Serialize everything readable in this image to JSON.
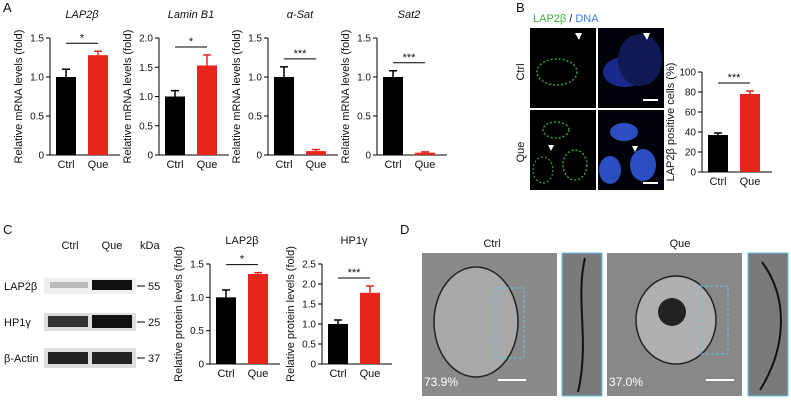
{
  "panel_labels": [
    "A",
    "B",
    "C",
    "D"
  ],
  "microscopy": {
    "channels": [
      "LAP2β",
      "/",
      "DNA"
    ],
    "rows": [
      "Ctrl",
      "Que"
    ]
  },
  "blot": {
    "columns": [
      "Ctrl",
      "Que"
    ],
    "unit": "kDa",
    "rows": [
      {
        "protein": "LAP2β",
        "kda": 55
      },
      {
        "protein": "HP1γ",
        "kda": 25
      },
      {
        "protein": "β-Actin",
        "kda": 37
      }
    ]
  },
  "em": {
    "groups": [
      {
        "label": "Ctrl",
        "percent": "73.9%"
      },
      {
        "label": "Que",
        "percent": "37.0%"
      }
    ]
  },
  "chart_data": [
    {
      "type": "bar",
      "title": "LAP2β",
      "italic_title": true,
      "ylabel": "Relative mRNA levels (fold)",
      "categories": [
        "Ctrl",
        "Que"
      ],
      "values": [
        1.0,
        1.28
      ],
      "errors": [
        0.1,
        0.05
      ],
      "colors": [
        "#000000",
        "#e8251b"
      ],
      "significance": "*",
      "ylim": [
        0,
        1.5
      ],
      "yticks": [
        0,
        0.5,
        {
          "value": 1,
          "label": "1.0"
        },
        1.5
      ]
    },
    {
      "type": "bar",
      "title": "Lamin B1",
      "italic_title": true,
      "ylabel": "Relative mRNA levels (fold)",
      "categories": [
        "Ctrl",
        "Que"
      ],
      "values": [
        1.0,
        1.53
      ],
      "errors": [
        0.1,
        0.18
      ],
      "colors": [
        "#000000",
        "#e8251b"
      ],
      "significance": "*",
      "ylim": [
        0,
        2
      ],
      "yticks": [
        0,
        0.5,
        {
          "value": 1,
          "label": "1.0"
        },
        1.5,
        {
          "value": 2,
          "label": "2.0"
        }
      ]
    },
    {
      "type": "bar",
      "title": "α-Sat",
      "italic_title": true,
      "ylabel": "Relative mRNA levels (fold)",
      "categories": [
        "Ctrl",
        "Que"
      ],
      "values": [
        1.0,
        0.05
      ],
      "errors": [
        0.13,
        0.02
      ],
      "colors": [
        "#000000",
        "#e8251b"
      ],
      "significance": "***",
      "ylim": [
        0,
        1.5
      ],
      "yticks": [
        0,
        0.5,
        {
          "value": 1,
          "label": "1.0"
        },
        1.5
      ]
    },
    {
      "type": "bar",
      "title": "Sat2",
      "italic_title": true,
      "ylabel": "Relative mRNA levels (fold)",
      "categories": [
        "Ctrl",
        "Que"
      ],
      "values": [
        1.0,
        0.03
      ],
      "errors": [
        0.08,
        0.01
      ],
      "colors": [
        "#000000",
        "#e8251b"
      ],
      "significance": "***",
      "ylim": [
        0,
        1.5
      ],
      "yticks": [
        0,
        0.5,
        {
          "value": 1,
          "label": "1.0"
        },
        1.5
      ]
    },
    {
      "type": "bar",
      "ylabel": "LAP2β positive cells (%)",
      "categories": [
        "Ctrl",
        "Que"
      ],
      "values": [
        37,
        78
      ],
      "errors": [
        2,
        3
      ],
      "colors": [
        "#000000",
        "#e8251b"
      ],
      "significance": "***",
      "ylim": [
        0,
        100
      ],
      "yticks": [
        0,
        20,
        40,
        60,
        80,
        100
      ]
    },
    {
      "type": "bar",
      "title": "LAP2β",
      "italic_title": false,
      "ylabel": "Relative protein levels (fold)",
      "categories": [
        "Ctrl",
        "Que"
      ],
      "values": [
        1.0,
        1.35
      ],
      "errors": [
        0.11,
        0.02
      ],
      "colors": [
        "#000000",
        "#e8251b"
      ],
      "significance": "*",
      "ylim": [
        0,
        1.5
      ],
      "yticks": [
        0,
        0.5,
        {
          "value": 1,
          "label": "1.0"
        },
        1.5
      ]
    },
    {
      "type": "bar",
      "title": "HP1γ",
      "italic_title": false,
      "ylabel": "Relative protein levels (fold)",
      "categories": [
        "Ctrl",
        "Que"
      ],
      "values": [
        1.0,
        1.78
      ],
      "errors": [
        0.1,
        0.17
      ],
      "colors": [
        "#000000",
        "#e8251b"
      ],
      "significance": "***",
      "ylim": [
        0,
        2.5
      ],
      "yticks": [
        0,
        0.5,
        {
          "value": 1,
          "label": "1.0"
        },
        1.5,
        {
          "value": 2,
          "label": "2.0"
        },
        2.5
      ]
    }
  ]
}
